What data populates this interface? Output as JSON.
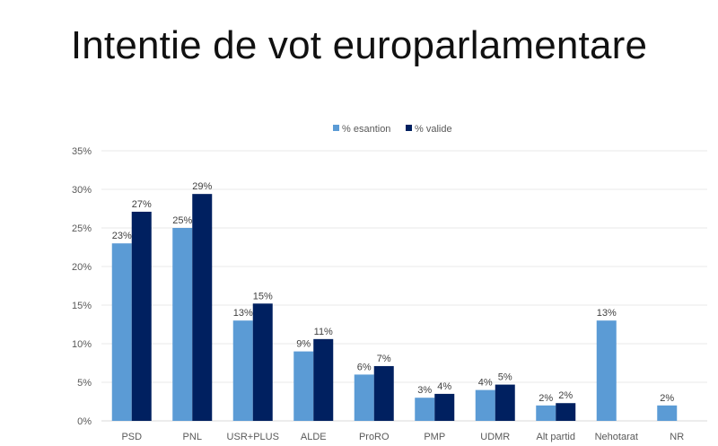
{
  "chart_data": {
    "type": "bar",
    "title": "Intentie de vot europarlamentare",
    "xlabel": "",
    "ylabel": "",
    "ylim": [
      0,
      35
    ],
    "yticks": [
      "0%",
      "5%",
      "10%",
      "15%",
      "20%",
      "25%",
      "30%",
      "35%"
    ],
    "grid": true,
    "legend_position": "top",
    "categories": [
      "PSD",
      "PNL",
      "USR+PLUS",
      "ALDE",
      "ProRO",
      "PMP",
      "UDMR",
      "Alt partid",
      "Nehotarat",
      "NR"
    ],
    "series": [
      {
        "name": "% esantion",
        "color": "#5b9bd5",
        "values": [
          23,
          25,
          13,
          9,
          6,
          3,
          4,
          2,
          13,
          2
        ],
        "labels": [
          "23%",
          "25%",
          "13%",
          "9%",
          "6%",
          "3%",
          "4%",
          "2%",
          "13%",
          "2%"
        ]
      },
      {
        "name": "% valide",
        "color": "#002060",
        "values": [
          27.1,
          29.4,
          15.2,
          10.6,
          7.1,
          3.5,
          4.7,
          2.3,
          null,
          null
        ],
        "labels": [
          "27%",
          "29%",
          "15%",
          "11%",
          "7%",
          "4%",
          "5%",
          "2%",
          null,
          null
        ]
      }
    ]
  }
}
